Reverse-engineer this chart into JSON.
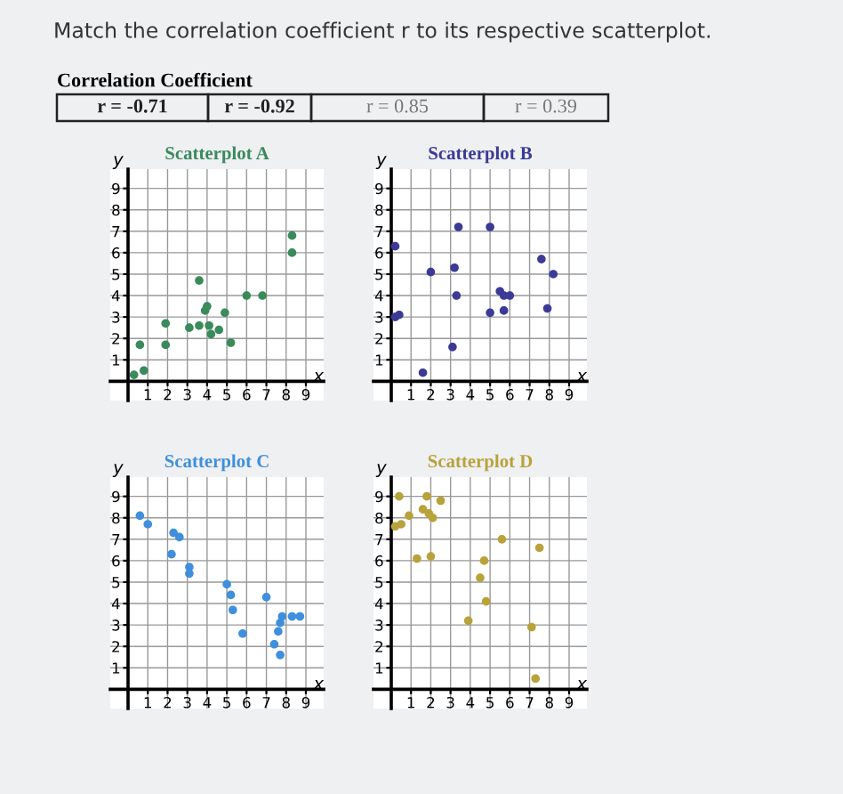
{
  "chart_data": [
    {
      "type": "other",
      "title": "Match the correlation coefficient r to its respective scatterplot.",
      "subtitle": "Correlation Coefficient",
      "annotations": [
        "r = -0.71",
        "r = -0.92",
        "r = 0.85",
        "r = 0.39"
      ]
    },
    {
      "type": "scatter",
      "title": "Scatterplot A",
      "xlabel": "x",
      "ylabel": "y",
      "xlim": [
        -0.9,
        9.9
      ],
      "ylim": [
        -0.9,
        9.9
      ],
      "xticks": [
        1,
        2,
        3,
        4,
        5,
        6,
        7,
        8,
        9
      ],
      "yticks": [
        1,
        2,
        3,
        4,
        5,
        6,
        7,
        8,
        9
      ],
      "grid": true,
      "marker": "circle",
      "series": [
        {
          "color": "#3a8a5c",
          "x": [
            0.3,
            0.8,
            0.6,
            1.9,
            1.9,
            3.1,
            3.6,
            3.6,
            3.9,
            4.0,
            4.1,
            4.2,
            4.6,
            4.9,
            5.2,
            6.0,
            6.8,
            8.3,
            8.3
          ],
          "values": [
            0.3,
            0.5,
            1.7,
            2.7,
            1.7,
            2.5,
            4.7,
            2.6,
            3.3,
            3.5,
            2.6,
            2.2,
            2.4,
            3.2,
            1.8,
            4.0,
            4.0,
            6.0,
            6.8
          ]
        }
      ]
    },
    {
      "type": "scatter",
      "title": "Scatterplot B",
      "xlabel": "x",
      "ylabel": "y",
      "xlim": [
        -0.9,
        9.9
      ],
      "ylim": [
        -0.9,
        9.9
      ],
      "xticks": [
        1,
        2,
        3,
        4,
        5,
        6,
        7,
        8,
        9
      ],
      "yticks": [
        1,
        2,
        3,
        4,
        5,
        6,
        7,
        8,
        9
      ],
      "grid": true,
      "marker": "circle",
      "series": [
        {
          "color": "#3b3a96",
          "x": [
            0.2,
            0.2,
            0.4,
            1.6,
            2.0,
            3.1,
            3.4,
            3.2,
            3.3,
            5.0,
            5.0,
            5.5,
            5.7,
            5.7,
            6.0,
            7.6,
            8.2,
            7.9
          ],
          "values": [
            6.3,
            3.0,
            3.1,
            0.4,
            5.1,
            1.6,
            7.2,
            5.3,
            4.0,
            7.2,
            3.2,
            4.2,
            4.0,
            3.3,
            4.0,
            5.7,
            5.0,
            3.4
          ]
        }
      ]
    },
    {
      "type": "scatter",
      "title": "Scatterplot C",
      "xlabel": "x",
      "ylabel": "y",
      "xlim": [
        -0.9,
        9.9
      ],
      "ylim": [
        -0.9,
        9.9
      ],
      "xticks": [
        1,
        2,
        3,
        4,
        5,
        6,
        7,
        8,
        9
      ],
      "yticks": [
        1,
        2,
        3,
        4,
        5,
        6,
        7,
        8,
        9
      ],
      "grid": true,
      "marker": "circle",
      "series": [
        {
          "color": "#3f8fdc",
          "x": [
            0.6,
            1.0,
            2.2,
            2.3,
            2.6,
            3.1,
            3.1,
            5.0,
            5.2,
            5.3,
            5.8,
            7.0,
            7.4,
            7.7,
            7.6,
            7.7,
            7.8,
            8.3,
            8.7
          ],
          "values": [
            8.1,
            7.7,
            6.3,
            7.3,
            7.1,
            5.7,
            5.4,
            4.9,
            4.4,
            3.7,
            2.6,
            4.3,
            2.1,
            1.6,
            2.7,
            3.1,
            3.4,
            3.4,
            3.4
          ]
        }
      ]
    },
    {
      "type": "scatter",
      "title": "Scatterplot D",
      "xlabel": "x",
      "ylabel": "y",
      "xlim": [
        -0.9,
        9.9
      ],
      "ylim": [
        -0.9,
        9.9
      ],
      "xticks": [
        1,
        2,
        3,
        4,
        5,
        6,
        7,
        8,
        9
      ],
      "yticks": [
        1,
        2,
        3,
        4,
        5,
        6,
        7,
        8,
        9
      ],
      "grid": true,
      "marker": "circle",
      "series": [
        {
          "color": "#b8a23a",
          "x": [
            0.4,
            0.2,
            0.5,
            0.9,
            1.3,
            1.6,
            1.8,
            1.9,
            2.1,
            2.0,
            2.5,
            3.9,
            4.5,
            4.7,
            4.8,
            5.6,
            7.5,
            7.1,
            7.3
          ],
          "values": [
            9.0,
            7.6,
            7.7,
            8.1,
            6.1,
            8.4,
            9.0,
            8.2,
            8.0,
            6.2,
            8.8,
            3.2,
            5.2,
            6.0,
            4.1,
            7.0,
            6.6,
            2.9,
            0.5
          ]
        }
      ]
    }
  ]
}
